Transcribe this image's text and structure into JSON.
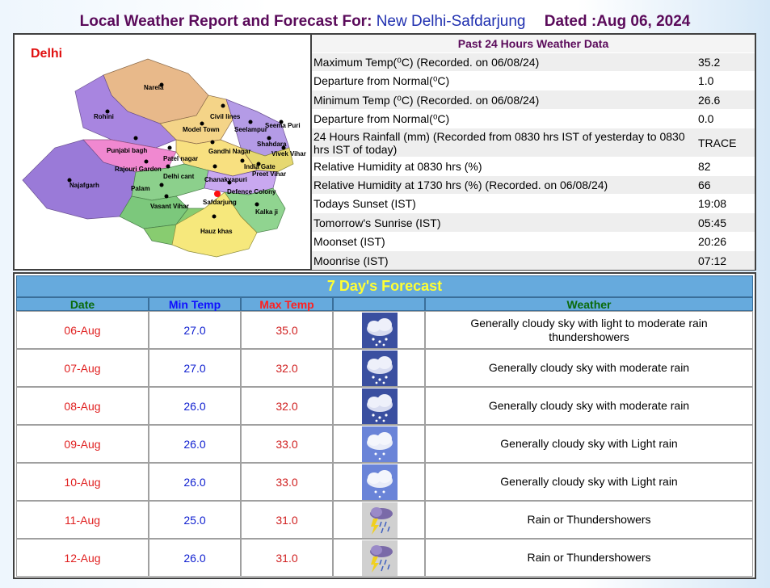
{
  "header": {
    "prefix": "Local Weather Report and Forecast For:",
    "location": "New Delhi-Safdarjung",
    "dated": "Dated :Aug 06, 2024"
  },
  "map": {
    "title": "Delhi",
    "labels": [
      "Narela",
      "Rohini",
      "Civil lines",
      "Model Town",
      "Seelampur",
      "Seema Puri",
      "Shahdara",
      "Vivek Vihar",
      "Punjabi bagh",
      "Gandhi Nagar",
      "Patel nagar",
      "Rajouri Garden",
      "India Gate",
      "Delhi cant",
      "Chanakyapuri",
      "Preet Vihar",
      "Najafgarh",
      "Palam",
      "Defence Colony",
      "Vasant Vihar",
      "Safdarjung",
      "Kalka ji",
      "Hauz khas"
    ]
  },
  "past24": {
    "title": "Past 24 Hours Weather Data",
    "rows": [
      {
        "label": "Maximum Temp(⁰C) (Recorded. on 06/08/24)",
        "value": "35.2"
      },
      {
        "label": "Departure from Normal(⁰C)",
        "value": "1.0"
      },
      {
        "label": "Minimum Temp (⁰C) (Recorded. on 06/08/24)",
        "value": "26.6"
      },
      {
        "label": "Departure from Normal(⁰C)",
        "value": "0.0"
      },
      {
        "label": "24 Hours Rainfall (mm) (Recorded from 0830 hrs IST of yesterday to 0830 hrs IST of today)",
        "value": "TRACE"
      },
      {
        "label": "Relative Humidity at 0830 hrs (%)",
        "value": "82"
      },
      {
        "label": "Relative Humidity at 1730 hrs (%) (Recorded. on 06/08/24)",
        "value": "66"
      },
      {
        "label": "Todays Sunset (IST)",
        "value": "19:08"
      },
      {
        "label": "Tomorrow's Sunrise (IST)",
        "value": "05:45"
      },
      {
        "label": "Moonset (IST)",
        "value": "20:26"
      },
      {
        "label": "Moonrise (IST)",
        "value": "07:12"
      }
    ]
  },
  "forecast": {
    "title": "7 Day's Forecast",
    "headers": {
      "date": "Date",
      "min": "Min Temp",
      "max": "Max Temp",
      "weather": "Weather"
    },
    "rows": [
      {
        "date": "06-Aug",
        "min": "27.0",
        "max": "35.0",
        "icon": "moderate-rain-icon",
        "weather": "Generally cloudy sky with light to moderate rain thundershowers"
      },
      {
        "date": "07-Aug",
        "min": "27.0",
        "max": "32.0",
        "icon": "moderate-rain-icon",
        "weather": "Generally cloudy sky with moderate rain"
      },
      {
        "date": "08-Aug",
        "min": "26.0",
        "max": "32.0",
        "icon": "moderate-rain-icon",
        "weather": "Generally cloudy sky with moderate rain"
      },
      {
        "date": "09-Aug",
        "min": "26.0",
        "max": "33.0",
        "icon": "light-rain-icon",
        "weather": "Generally cloudy sky with Light rain"
      },
      {
        "date": "10-Aug",
        "min": "26.0",
        "max": "33.0",
        "icon": "light-rain-icon",
        "weather": "Generally cloudy sky with Light rain"
      },
      {
        "date": "11-Aug",
        "min": "25.0",
        "max": "31.0",
        "icon": "thunderstorm-icon",
        "weather": "Rain or Thundershowers"
      },
      {
        "date": "12-Aug",
        "min": "26.0",
        "max": "31.0",
        "icon": "thunderstorm-icon",
        "weather": "Rain or Thundershowers"
      }
    ]
  }
}
